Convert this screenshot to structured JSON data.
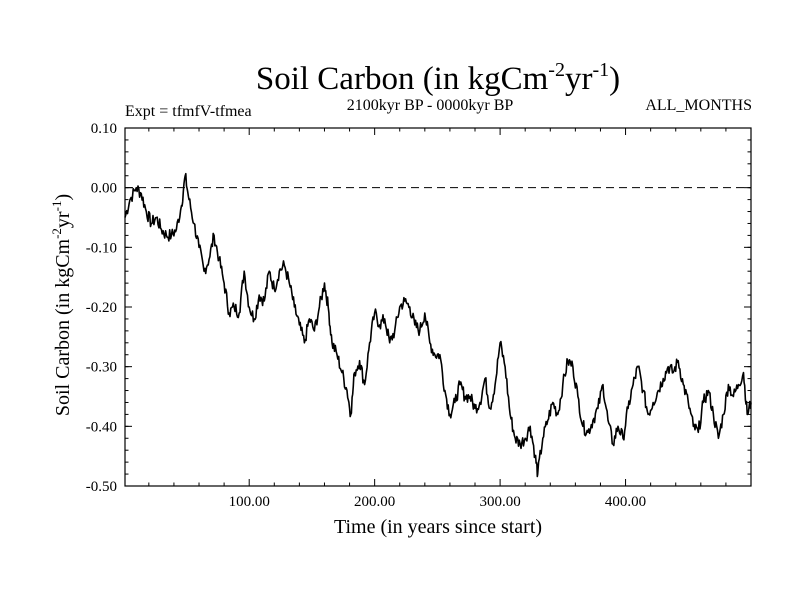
{
  "chart_data": {
    "type": "line",
    "title": {
      "base": "Soil Carbon (in kgCm",
      "exp1": "-2",
      "mid": "yr",
      "exp2": "-1",
      "end": ")"
    },
    "subtitle_left": "Expt = tfmfV-tfmea",
    "subtitle_center": "2100kyr BP - 0000kyr BP",
    "subtitle_right": "ALL_MONTHS",
    "xlabel": "Time (in years since start)",
    "ylabel": {
      "base": "Soil Carbon (in kgCm",
      "exp1": "-2",
      "mid": "yr",
      "exp2": "-1",
      "end": ")"
    },
    "xlim": [
      1,
      500
    ],
    "ylim": [
      -0.5,
      0.1
    ],
    "x_ticks": [
      {
        "value": 100,
        "label": "100.00"
      },
      {
        "value": 200,
        "label": "200.00"
      },
      {
        "value": 300,
        "label": "300.00"
      },
      {
        "value": 400,
        "label": "400.00"
      }
    ],
    "y_ticks": [
      {
        "value": 0.1,
        "label": "0.10"
      },
      {
        "value": 0.0,
        "label": "0.00"
      },
      {
        "value": -0.1,
        "label": "-0.10"
      },
      {
        "value": -0.2,
        "label": "-0.20"
      },
      {
        "value": -0.3,
        "label": "-0.30"
      },
      {
        "value": -0.4,
        "label": "-0.40"
      },
      {
        "value": -0.5,
        "label": "-0.50"
      }
    ],
    "reference_line": {
      "value": 0.0,
      "style": "dashed"
    },
    "series": [
      {
        "name": "Soil Carbon",
        "x": [
          1,
          5,
          10,
          14,
          18,
          22,
          26,
          30,
          34,
          38,
          42,
          46,
          49,
          52,
          56,
          60,
          64,
          68,
          72,
          76,
          80,
          84,
          88,
          92,
          96,
          100,
          104,
          108,
          112,
          116,
          120,
          124,
          128,
          132,
          136,
          140,
          144,
          148,
          152,
          156,
          160,
          163,
          166,
          170,
          174,
          178,
          181,
          184,
          188,
          192,
          196,
          200,
          204,
          208,
          212,
          216,
          220,
          224,
          228,
          232,
          236,
          240,
          244,
          248,
          252,
          256,
          260,
          264,
          268,
          272,
          276,
          280,
          284,
          288,
          292,
          296,
          300,
          304,
          308,
          312,
          316,
          320,
          324,
          328,
          330,
          334,
          338,
          342,
          346,
          350,
          354,
          358,
          362,
          366,
          370,
          374,
          378,
          382,
          386,
          390,
          394,
          398,
          402,
          406,
          410,
          414,
          418,
          422,
          426,
          430,
          434,
          438,
          442,
          446,
          450,
          454,
          458,
          462,
          466,
          470,
          474,
          478,
          482,
          486,
          490,
          494,
          497,
          500
        ],
        "values": [
          -0.05,
          -0.02,
          0.0,
          -0.01,
          -0.04,
          -0.06,
          -0.05,
          -0.07,
          -0.08,
          -0.08,
          -0.07,
          -0.03,
          0.02,
          -0.02,
          -0.06,
          -0.1,
          -0.14,
          -0.12,
          -0.08,
          -0.12,
          -0.16,
          -0.21,
          -0.2,
          -0.21,
          -0.14,
          -0.2,
          -0.22,
          -0.18,
          -0.19,
          -0.14,
          -0.17,
          -0.14,
          -0.13,
          -0.16,
          -0.2,
          -0.23,
          -0.26,
          -0.22,
          -0.24,
          -0.2,
          -0.16,
          -0.2,
          -0.26,
          -0.28,
          -0.31,
          -0.34,
          -0.38,
          -0.31,
          -0.29,
          -0.33,
          -0.26,
          -0.21,
          -0.23,
          -0.22,
          -0.26,
          -0.24,
          -0.2,
          -0.19,
          -0.2,
          -0.23,
          -0.24,
          -0.21,
          -0.26,
          -0.28,
          -0.28,
          -0.34,
          -0.38,
          -0.36,
          -0.33,
          -0.35,
          -0.35,
          -0.37,
          -0.36,
          -0.32,
          -0.37,
          -0.33,
          -0.26,
          -0.3,
          -0.38,
          -0.42,
          -0.43,
          -0.42,
          -0.4,
          -0.45,
          -0.48,
          -0.42,
          -0.39,
          -0.36,
          -0.38,
          -0.33,
          -0.29,
          -0.3,
          -0.35,
          -0.4,
          -0.41,
          -0.39,
          -0.37,
          -0.33,
          -0.39,
          -0.43,
          -0.4,
          -0.42,
          -0.37,
          -0.33,
          -0.3,
          -0.34,
          -0.38,
          -0.36,
          -0.34,
          -0.32,
          -0.3,
          -0.31,
          -0.29,
          -0.33,
          -0.36,
          -0.4,
          -0.41,
          -0.36,
          -0.34,
          -0.38,
          -0.42,
          -0.38,
          -0.33,
          -0.35,
          -0.33,
          -0.31,
          -0.38,
          -0.36
        ]
      }
    ]
  }
}
